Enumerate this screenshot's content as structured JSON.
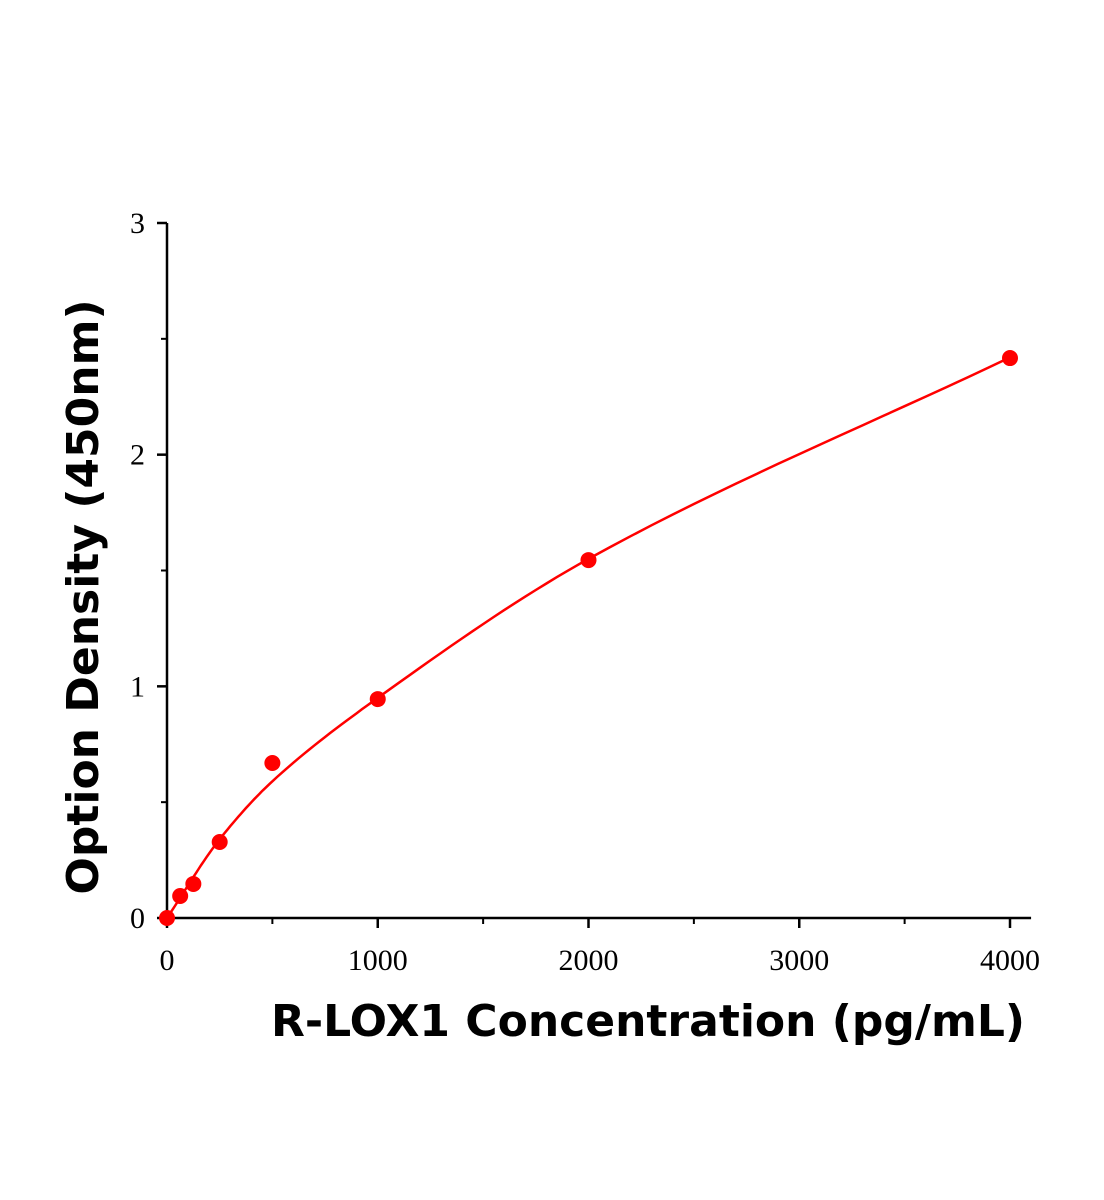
{
  "chart_data": {
    "type": "scatter",
    "title": "",
    "xlabel": "R-LOX1 Concentration (pg/mL)",
    "ylabel": "Option Density (450nm)",
    "xlim": [
      0,
      4100
    ],
    "ylim": [
      0,
      3
    ],
    "x_ticks": [
      0,
      1000,
      2000,
      3000,
      4000
    ],
    "x_minor_ticks": [
      500,
      1500,
      2500,
      3500
    ],
    "y_ticks": [
      0,
      1,
      2,
      3
    ],
    "y_minor_ticks": [
      0.5,
      1.5,
      2.5
    ],
    "grid": false,
    "color": "#ff0000",
    "points": {
      "x": [
        0,
        62.5,
        125,
        250,
        500,
        1000,
        2000,
        4000
      ],
      "y": [
        0.0,
        0.095,
        0.147,
        0.328,
        0.669,
        0.945,
        1.545,
        2.417
      ]
    },
    "fit_curve": {
      "x": [
        0,
        250,
        500,
        1000,
        2000,
        4000
      ],
      "y": [
        0,
        0.34,
        0.59,
        0.95,
        1.55,
        2.42
      ]
    }
  }
}
